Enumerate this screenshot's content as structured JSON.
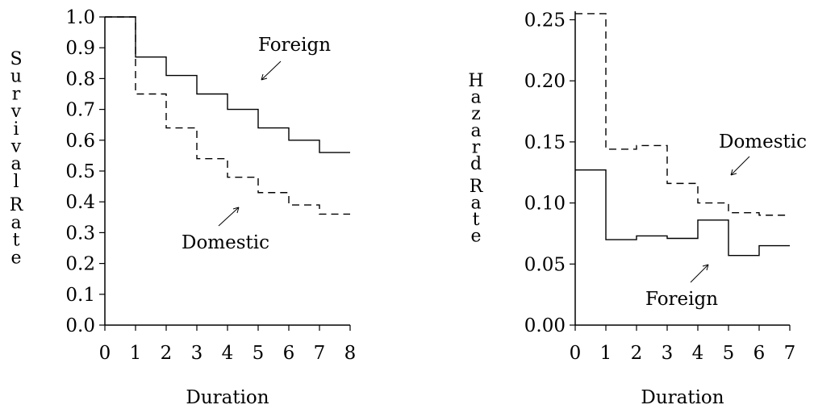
{
  "chart_data": [
    {
      "type": "line",
      "step": true,
      "ylabel": "Survival Rate",
      "xlabel": "Duration",
      "xlim": [
        0,
        8
      ],
      "ylim": [
        0.0,
        1.0
      ],
      "x_ticks": [
        "0",
        "1",
        "2",
        "3",
        "4",
        "5",
        "6",
        "7",
        "8"
      ],
      "y_ticks": [
        "0.0",
        "0.1",
        "0.2",
        "0.3",
        "0.4",
        "0.5",
        "0.6",
        "0.7",
        "0.8",
        "0.9",
        "1.0"
      ],
      "series": [
        {
          "name": "Foreign",
          "style": "solid",
          "x": [
            0,
            1,
            2,
            3,
            4,
            5,
            6,
            7,
            8
          ],
          "values": [
            1.0,
            0.87,
            0.81,
            0.75,
            0.7,
            0.64,
            0.6,
            0.56,
            0.56
          ]
        },
        {
          "name": "Domestic",
          "style": "dashed",
          "x": [
            0,
            1,
            2,
            3,
            4,
            5,
            6,
            7,
            8
          ],
          "values": [
            1.0,
            0.75,
            0.64,
            0.54,
            0.48,
            0.43,
            0.39,
            0.36,
            0.36
          ]
        }
      ],
      "annotations": [
        "Foreign",
        "Domestic"
      ]
    },
    {
      "type": "line",
      "step": true,
      "ylabel": "Hazard Rate",
      "xlabel": "Duration",
      "xlim": [
        0,
        7
      ],
      "ylim": [
        0.0,
        0.26
      ],
      "x_ticks": [
        "0",
        "1",
        "2",
        "3",
        "4",
        "5",
        "6",
        "7"
      ],
      "y_ticks": [
        "0.00",
        "0.05",
        "0.10",
        "0.15",
        "0.20",
        "0.25"
      ],
      "series": [
        {
          "name": "Domestic",
          "style": "dashed",
          "x": [
            0,
            1,
            2,
            3,
            4,
            5,
            6,
            7
          ],
          "values": [
            0.255,
            0.144,
            0.147,
            0.116,
            0.1,
            0.092,
            0.09,
            0.09
          ]
        },
        {
          "name": "Foreign",
          "style": "solid",
          "x": [
            0,
            1,
            2,
            3,
            4,
            5,
            6,
            7
          ],
          "values": [
            0.127,
            0.07,
            0.073,
            0.071,
            0.086,
            0.057,
            0.065,
            0.065
          ]
        }
      ],
      "annotations": [
        "Domestic",
        "Foreign"
      ]
    }
  ]
}
